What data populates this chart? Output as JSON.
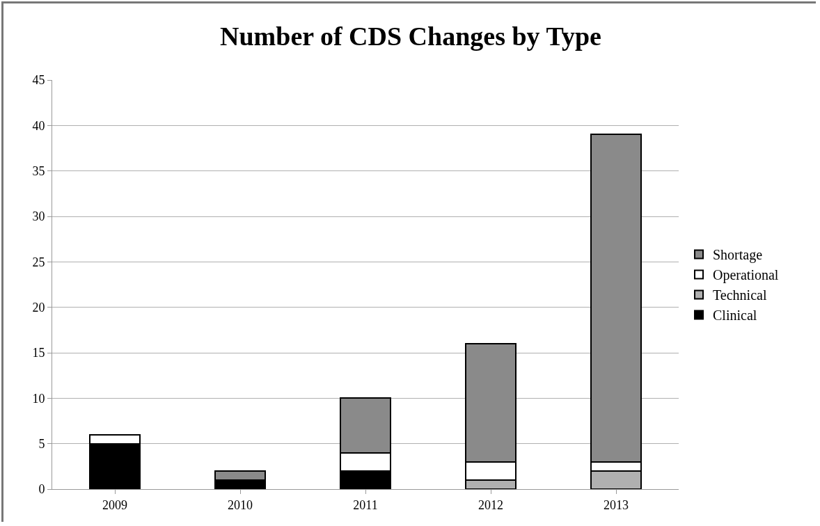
{
  "chart_data": {
    "type": "bar",
    "title": "Number of CDS Changes by Type",
    "stacked": true,
    "categories": [
      "2009",
      "2010",
      "2011",
      "2012",
      "2013"
    ],
    "series": [
      {
        "name": "Clinical",
        "color": "#000000",
        "values": [
          5,
          1,
          2,
          0,
          0
        ]
      },
      {
        "name": "Technical",
        "color": "#b0b0b0",
        "values": [
          0,
          0,
          0,
          1,
          2
        ]
      },
      {
        "name": "Operational",
        "color": "#ffffff",
        "values": [
          1,
          0,
          2,
          2,
          1
        ]
      },
      {
        "name": "Shortage",
        "color": "#8a8a8a",
        "values": [
          0,
          1,
          6,
          13,
          36
        ]
      }
    ],
    "ylim": [
      0,
      45
    ],
    "yticks": [
      0,
      5,
      10,
      15,
      20,
      25,
      30,
      35,
      40,
      45
    ],
    "grid": "y",
    "legend": "right"
  }
}
